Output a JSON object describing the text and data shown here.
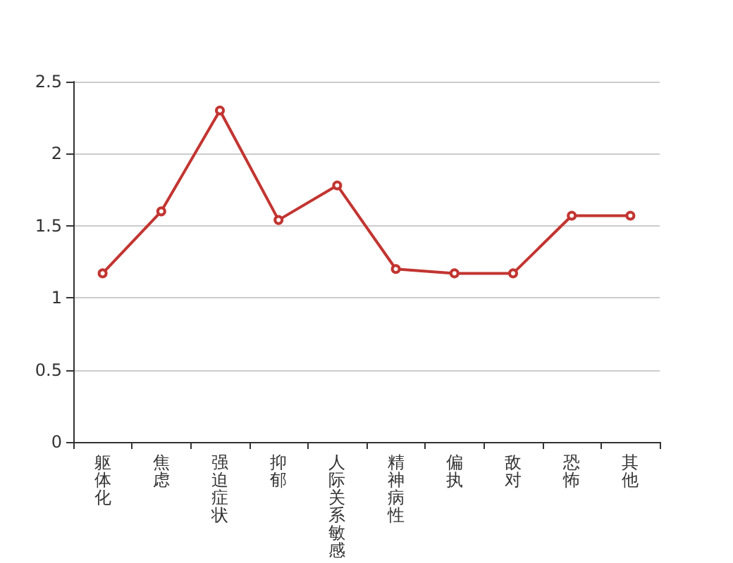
{
  "chart_data": {
    "type": "line",
    "categories": [
      "躯体化",
      "焦虑",
      "强迫症状",
      "抑郁",
      "人际关系敏感",
      "精神病性",
      "偏执",
      "敌对",
      "恐怖",
      "其他"
    ],
    "series": [
      {
        "color": "#c23531",
        "values": [
          1.17,
          1.6,
          2.3,
          1.54,
          1.78,
          1.2,
          1.17,
          1.17,
          1.57,
          1.57
        ]
      }
    ],
    "ylim": [
      0,
      2.5
    ],
    "yticks": [
      0,
      0.5,
      1,
      1.5,
      2,
      2.5
    ],
    "grid": "y",
    "marker": "circle",
    "line_style": "solid"
  }
}
